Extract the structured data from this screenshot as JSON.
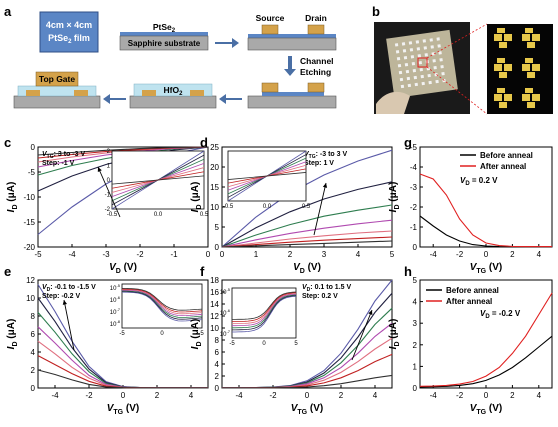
{
  "panel_letters": [
    "a",
    "b",
    "c",
    "d",
    "e",
    "f",
    "g",
    "h"
  ],
  "schematic": {
    "film_label_line1": "4cm × 4cm",
    "film_label_line2": "PtSe",
    "film_label_sub": "2",
    "film_label_line2_end": " film",
    "ptse2_label": "PtSe",
    "ptse2_sub": "2",
    "substrate_label": "Sapphire substrate",
    "source_label": "Source",
    "drain_label": "Drain",
    "etch_label_line1": "Channel",
    "etch_label_line2": "Etching",
    "hfo2_label": "HfO",
    "hfo2_sub": "2",
    "top_gate_label": "Top Gate",
    "colors": {
      "film": "#5b86c5",
      "substrate": "#a9a9a9",
      "electrode": "#d4a24a",
      "dielectric": "#bfe3ef",
      "arrow": "#4a6fa5"
    }
  },
  "photo": {
    "bg": "#1a1a1a",
    "zoom_bg": "#050505",
    "pad_color": "#e7c84a"
  },
  "chart_data": [
    {
      "panel": "c",
      "type": "line",
      "xlabel": "V",
      "xlabel_sub": "D",
      "xlabel_unit": " (V)",
      "ylabel": "I",
      "ylabel_sub": "D",
      "ylabel_unit": " (μA)",
      "xlim": [
        -5,
        0
      ],
      "ylim": [
        -20,
        0
      ],
      "xticks": [
        -5,
        -4,
        -3,
        -2,
        -1,
        0
      ],
      "yticks": [
        -20,
        -15,
        -10,
        -5,
        0
      ],
      "annot_line1_prefix": "V",
      "annot_line1_sub": "TG",
      "annot_line1": ": 3 to -3 V",
      "annot_line2": "Step: -1 V",
      "series": [
        {
          "color": "#5a5aa8",
          "values": [
            -17.5,
            -12.0,
            -7.4,
            -3.8,
            -1.3,
            0
          ]
        },
        {
          "color": "#202040",
          "values": [
            -8.8,
            -5.8,
            -3.5,
            -1.8,
            -0.6,
            0
          ]
        },
        {
          "color": "#2e7d4f",
          "values": [
            -5.6,
            -3.7,
            -2.3,
            -1.2,
            -0.4,
            0
          ]
        },
        {
          "color": "#b04ab0",
          "values": [
            -4.0,
            -2.7,
            -1.6,
            -0.8,
            -0.3,
            0
          ]
        },
        {
          "color": "#e07080",
          "values": [
            -3.0,
            -2.0,
            -1.2,
            -0.6,
            -0.2,
            0
          ]
        },
        {
          "color": "#c02020",
          "values": [
            -2.2,
            -1.5,
            -0.9,
            -0.45,
            -0.15,
            0
          ]
        },
        {
          "color": "#303030",
          "values": [
            -1.6,
            -1.1,
            -0.65,
            -0.33,
            -0.1,
            0
          ]
        }
      ],
      "x": [
        -5,
        -4,
        -3,
        -2,
        -1,
        0
      ],
      "inset": {
        "xlim": [
          -0.5,
          0.5
        ],
        "ylim": [
          -2,
          2
        ],
        "xticks": [
          -0.5,
          0.0,
          0.5
        ],
        "yticks": [
          -2,
          -1,
          0,
          1,
          2
        ]
      }
    },
    {
      "panel": "d",
      "type": "line",
      "xlabel": "V",
      "xlabel_sub": "D",
      "xlabel_unit": " (V)",
      "ylabel": "I",
      "ylabel_sub": "D",
      "ylabel_unit": " (μA)",
      "xlim": [
        0,
        5
      ],
      "ylim": [
        0,
        25
      ],
      "xticks": [
        0,
        1,
        2,
        3,
        4,
        5
      ],
      "yticks": [
        0,
        5,
        10,
        15,
        20,
        25
      ],
      "annot_line1_prefix": "V",
      "annot_line1_sub": "TG",
      "annot_line1": ": -3  to 3 V",
      "annot_line2": "Step: 1 V",
      "series": [
        {
          "color": "#5a5aa8",
          "values": [
            0,
            7.5,
            13.5,
            18.0,
            21.5,
            24.2
          ]
        },
        {
          "color": "#202040",
          "values": [
            0,
            4.8,
            8.8,
            12.0,
            14.4,
            16.3
          ]
        },
        {
          "color": "#2e7d4f",
          "values": [
            0,
            3.0,
            5.6,
            7.7,
            9.2,
            10.5
          ]
        },
        {
          "color": "#b04ab0",
          "values": [
            0,
            1.8,
            3.4,
            4.7,
            5.8,
            6.7
          ]
        },
        {
          "color": "#e07080",
          "values": [
            0,
            1.0,
            2.0,
            2.8,
            3.5,
            4.0
          ]
        },
        {
          "color": "#c02020",
          "values": [
            0,
            0.6,
            1.2,
            1.7,
            2.1,
            2.5
          ]
        },
        {
          "color": "#303030",
          "values": [
            0,
            0.3,
            0.6,
            0.9,
            1.2,
            1.5
          ]
        }
      ],
      "x": [
        0,
        1,
        2,
        3,
        4,
        5
      ],
      "inset": {
        "xlim": [
          -0.5,
          0.5
        ],
        "ylim": [
          -2,
          2
        ],
        "xticks": [
          -0.5,
          0.0,
          0.5
        ],
        "yticks": []
      }
    },
    {
      "panel": "e",
      "type": "line",
      "xlabel": "V",
      "xlabel_sub": "TG",
      "xlabel_unit": " (V)",
      "ylabel": "I",
      "ylabel_sub": "D",
      "ylabel_unit": " (μA)",
      "xlim": [
        -5,
        5
      ],
      "ylim": [
        0,
        12
      ],
      "xticks": [
        -4,
        -2,
        0,
        2,
        4
      ],
      "yticks": [
        0,
        2,
        4,
        6,
        8,
        10,
        12
      ],
      "annot_line1_prefix": "V",
      "annot_line1_sub": "D",
      "annot_line1": ": -0.1 to -1.5 V",
      "annot_line2": "Step: -0.2 V",
      "x": [
        -5,
        -4,
        -3,
        -2,
        -1,
        0,
        1,
        2,
        3,
        4,
        5
      ],
      "series": [
        {
          "color": "#5a5aa8",
          "values": [
            11.5,
            8.5,
            5.2,
            2.4,
            0.7,
            0.15,
            0.05,
            0.03,
            0.03,
            0.03,
            0.03
          ]
        },
        {
          "color": "#202040",
          "values": [
            10.0,
            7.4,
            4.5,
            2.1,
            0.6,
            0.13,
            0.04,
            0.03,
            0.03,
            0.03,
            0.03
          ]
        },
        {
          "color": "#2e7d4f",
          "values": [
            8.4,
            6.2,
            3.8,
            1.8,
            0.5,
            0.11,
            0.04,
            0.02,
            0.02,
            0.02,
            0.02
          ]
        },
        {
          "color": "#b04ab0",
          "values": [
            6.8,
            5.0,
            3.1,
            1.4,
            0.4,
            0.09,
            0.03,
            0.02,
            0.02,
            0.02,
            0.02
          ]
        },
        {
          "color": "#e07080",
          "values": [
            5.2,
            3.8,
            2.3,
            1.1,
            0.3,
            0.07,
            0.02,
            0.02,
            0.02,
            0.02,
            0.02
          ]
        },
        {
          "color": "#c02020",
          "values": [
            3.6,
            2.6,
            1.6,
            0.75,
            0.2,
            0.05,
            0.02,
            0.01,
            0.01,
            0.01,
            0.01
          ]
        },
        {
          "color": "#303030",
          "values": [
            2.0,
            1.5,
            0.9,
            0.4,
            0.12,
            0.03,
            0.01,
            0.01,
            0.01,
            0.01,
            0.01
          ]
        }
      ],
      "inset": {
        "log": true,
        "xlim": [
          -5,
          5
        ],
        "xticks": [
          -5,
          0,
          5
        ],
        "yticklabels": [
          "10",
          "10",
          "10",
          "10"
        ],
        "ytick_exps": [
          "-5",
          "-6",
          "-7",
          "-8"
        ]
      }
    },
    {
      "panel": "f",
      "type": "line",
      "xlabel": "V",
      "xlabel_sub": "TG",
      "xlabel_unit": " (V)",
      "ylabel": "I",
      "ylabel_sub": "D",
      "ylabel_unit": " (μA)",
      "xlim": [
        -5,
        5
      ],
      "ylim": [
        0,
        18
      ],
      "xticks": [
        -4,
        -2,
        0,
        2,
        4
      ],
      "yticks": [
        0,
        2,
        4,
        6,
        8,
        10,
        12,
        14,
        16,
        18
      ],
      "annot_line1_prefix": "V",
      "annot_line1_sub": "D",
      "annot_line1": ": 0.1 to 1.5 V",
      "annot_line2": "Step: 0.2 V",
      "x": [
        -5,
        -4,
        -3,
        -2,
        -1,
        0,
        1,
        2,
        3,
        4,
        5
      ],
      "series": [
        {
          "color": "#5a5aa8",
          "values": [
            0.05,
            0.06,
            0.08,
            0.15,
            0.4,
            1.2,
            2.9,
            5.8,
            9.8,
            14.5,
            18.0
          ]
        },
        {
          "color": "#202040",
          "values": [
            0.05,
            0.06,
            0.07,
            0.13,
            0.35,
            1.0,
            2.5,
            5.0,
            8.5,
            12.6,
            15.8
          ]
        },
        {
          "color": "#2e7d4f",
          "values": [
            0.04,
            0.05,
            0.06,
            0.11,
            0.3,
            0.85,
            2.1,
            4.2,
            7.1,
            10.6,
            13.3
          ]
        },
        {
          "color": "#b04ab0",
          "values": [
            0.04,
            0.04,
            0.05,
            0.09,
            0.24,
            0.7,
            1.7,
            3.4,
            5.8,
            8.6,
            10.8
          ]
        },
        {
          "color": "#e07080",
          "values": [
            0.03,
            0.03,
            0.04,
            0.07,
            0.18,
            0.52,
            1.3,
            2.6,
            4.4,
            6.5,
            8.3
          ]
        },
        {
          "color": "#c02020",
          "values": [
            0.02,
            0.02,
            0.03,
            0.05,
            0.12,
            0.35,
            0.85,
            1.7,
            2.9,
            4.4,
            5.6
          ]
        },
        {
          "color": "#303030",
          "values": [
            0.01,
            0.01,
            0.02,
            0.03,
            0.06,
            0.16,
            0.38,
            0.72,
            1.2,
            1.7,
            2.1
          ]
        }
      ],
      "inset": {
        "log": true,
        "xlim": [
          -5,
          5
        ],
        "xticks": [
          -5,
          0,
          5
        ],
        "yticklabels": [
          "10",
          "10",
          "10"
        ],
        "ytick_exps": [
          "-5",
          "-6",
          "-7"
        ]
      }
    },
    {
      "panel": "g",
      "type": "line",
      "xlabel": "V",
      "xlabel_sub": "TG",
      "xlabel_unit": " (V)",
      "ylabel": "I",
      "ylabel_sub": "D",
      "ylabel_unit": " (μA)",
      "xlim": [
        -5,
        5
      ],
      "ylim": [
        0,
        -5
      ],
      "xticks": [
        -4,
        -2,
        0,
        2,
        4
      ],
      "yticks": [
        0,
        -1,
        -2,
        -3,
        -4,
        -5
      ],
      "annot_prefix": "V",
      "annot_sub": "D",
      "annot": " = 0.2 V",
      "x": [
        -5,
        -4,
        -3,
        -2,
        -1,
        0,
        1,
        2,
        3,
        4,
        5
      ],
      "series": [
        {
          "name": "Before anneal",
          "color": "#000000",
          "values": [
            -1.55,
            -1.05,
            -0.6,
            -0.3,
            -0.12,
            -0.05,
            -0.02,
            -0.01,
            -0.01,
            -0.01,
            -0.01
          ]
        },
        {
          "name": "After anneal",
          "color": "#e02020",
          "values": [
            -3.65,
            -3.4,
            -2.6,
            -1.4,
            -0.6,
            -0.2,
            -0.07,
            -0.03,
            -0.02,
            -0.02,
            -0.02
          ]
        }
      ]
    },
    {
      "panel": "h",
      "type": "line",
      "xlabel": "V",
      "xlabel_sub": "TG",
      "xlabel_unit": " (V)",
      "ylabel": "I",
      "ylabel_sub": "D",
      "ylabel_unit": " (μA)",
      "xlim": [
        -5,
        5
      ],
      "ylim": [
        0,
        5
      ],
      "xticks": [
        -4,
        -2,
        0,
        2,
        4
      ],
      "yticks": [
        0,
        1,
        2,
        3,
        4,
        5
      ],
      "annot_prefix": "V",
      "annot_sub": "D",
      "annot": " = -0.2 V",
      "x": [
        -5,
        -4,
        -3,
        -2,
        -1,
        0,
        1,
        2,
        3,
        4,
        5
      ],
      "series": [
        {
          "name": "Before anneal",
          "color": "#000000",
          "values": [
            0.05,
            0.06,
            0.08,
            0.12,
            0.2,
            0.35,
            0.6,
            0.95,
            1.4,
            1.9,
            2.4
          ]
        },
        {
          "name": "After anneal",
          "color": "#e02020",
          "values": [
            0.08,
            0.09,
            0.12,
            0.18,
            0.3,
            0.55,
            0.95,
            1.6,
            2.4,
            3.4,
            4.4
          ]
        }
      ]
    }
  ]
}
